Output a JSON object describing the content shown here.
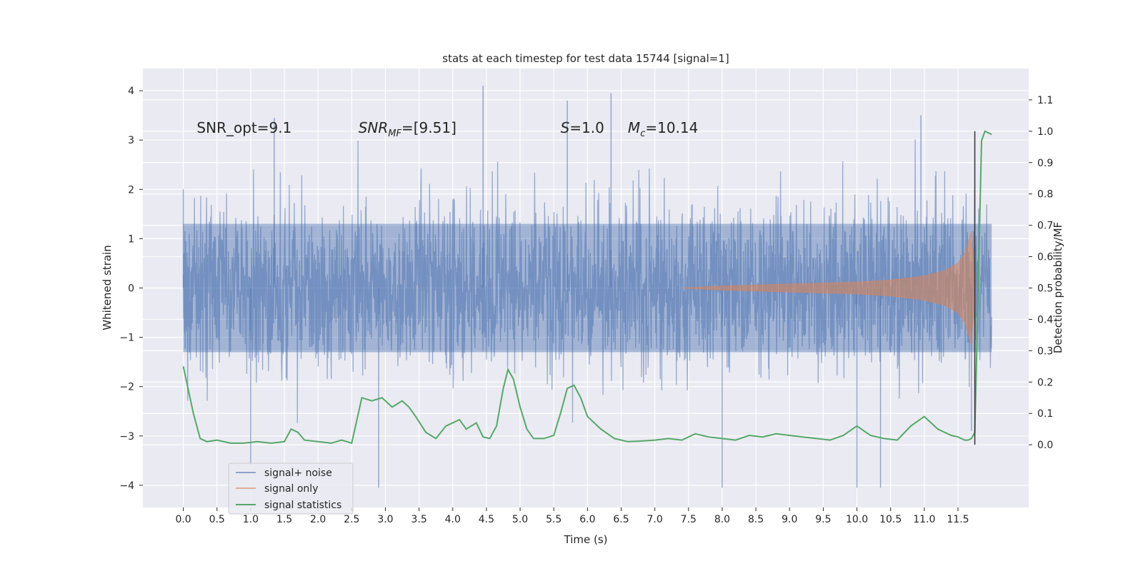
{
  "chart_data": {
    "type": "line",
    "title": "stats at each timestep for test data 15744 [signal=1]",
    "xlabel": "Time (s)",
    "ylabel": "Whitened strain",
    "y2label": "Detection probability/MF",
    "xlim": [
      -0.6,
      12.55
    ],
    "ylim": [
      -4.45,
      4.45
    ],
    "y2lim": [
      -0.2,
      1.2
    ],
    "xticks": [
      0.0,
      0.5,
      1.0,
      1.5,
      2.0,
      2.5,
      3.0,
      3.5,
      4.0,
      4.5,
      5.0,
      5.5,
      6.0,
      6.5,
      7.0,
      7.5,
      8.0,
      8.5,
      9.0,
      9.5,
      10.0,
      10.5,
      11.0,
      11.5
    ],
    "xtick_labels": [
      "0.0",
      "0.5",
      "1.0",
      "1.5",
      "2.0",
      "2.5",
      "3.0",
      "3.5",
      "4.0",
      "4.5",
      "5.0",
      "5.5",
      "6.0",
      "6.5",
      "7.0",
      "7.5",
      "8.0",
      "8.5",
      "9.0",
      "9.5",
      "10.0",
      "10.5",
      "11.0",
      "11.5"
    ],
    "yticks": [
      -4,
      -3,
      -2,
      -1,
      0,
      1,
      2,
      3,
      4
    ],
    "ytick_labels": [
      "−4",
      "−3",
      "−2",
      "−1",
      "0",
      "1",
      "2",
      "3",
      "4"
    ],
    "y2ticks": [
      0.0,
      0.1,
      0.2,
      0.3,
      0.4,
      0.5,
      0.6,
      0.7,
      0.8,
      0.9,
      1.0,
      1.1
    ],
    "y2tick_labels": [
      "0.0",
      "0.1",
      "0.2",
      "0.3",
      "0.4",
      "0.5",
      "0.6",
      "0.7",
      "0.8",
      "0.9",
      "1.0",
      "1.1"
    ],
    "grid": true,
    "legend_position": "lower-left",
    "annotations": [
      {
        "text": "SNR_opt=9.1",
        "x": 0.2,
        "y": 3.25
      },
      {
        "text": "SNR_MF=[9.51]",
        "x": 2.6,
        "y": 3.25
      },
      {
        "text": "S=1.0",
        "x": 5.6,
        "y": 3.25
      },
      {
        "text": "M_c=10.14",
        "x": 6.6,
        "y": 3.25
      }
    ],
    "vline": {
      "x": 11.75,
      "y2_range": [
        0.0,
        1.0
      ]
    },
    "series": [
      {
        "name": "signal+ noise",
        "color": "#4c72b0",
        "axis": "left",
        "t_range": [
          0.0,
          12.0
        ],
        "envelope_core": [
          -1.3,
          1.3
        ],
        "typical_extreme": [
          -2.9,
          3.2
        ],
        "notable_spikes": [
          [
            0.0,
            2.0
          ],
          [
            1.35,
            3.45
          ],
          [
            1.0,
            -3.6
          ],
          [
            2.9,
            -4.05
          ],
          [
            4.45,
            4.1
          ],
          [
            5.7,
            3.8
          ],
          [
            6.35,
            3.95
          ],
          [
            8.0,
            -4.05
          ],
          [
            10.0,
            -4.05
          ],
          [
            10.35,
            -4.05
          ],
          [
            10.95,
            3.5
          ],
          [
            11.7,
            -2.9
          ]
        ]
      },
      {
        "name": "signal only",
        "color": "#dd8452",
        "axis": "left",
        "kind": "chirp-envelope",
        "t_start": 7.4,
        "t_end": 11.75,
        "amp_start": 0.0,
        "amp_peak": 1.15,
        "t_peak": 11.7,
        "envelope": [
          [
            7.4,
            0.0
          ],
          [
            8.0,
            0.04
          ],
          [
            9.0,
            0.08
          ],
          [
            10.0,
            0.12
          ],
          [
            10.5,
            0.16
          ],
          [
            11.0,
            0.24
          ],
          [
            11.3,
            0.35
          ],
          [
            11.5,
            0.5
          ],
          [
            11.6,
            0.7
          ],
          [
            11.7,
            1.15
          ],
          [
            11.75,
            0.0
          ]
        ]
      },
      {
        "name": "signal statistics",
        "color": "#55a868",
        "axis": "right",
        "points": [
          [
            0.0,
            0.25
          ],
          [
            0.15,
            0.1
          ],
          [
            0.25,
            0.02
          ],
          [
            0.35,
            0.01
          ],
          [
            0.5,
            0.015
          ],
          [
            0.7,
            0.005
          ],
          [
            0.9,
            0.005
          ],
          [
            1.1,
            0.01
          ],
          [
            1.3,
            0.005
          ],
          [
            1.5,
            0.01
          ],
          [
            1.6,
            0.05
          ],
          [
            1.7,
            0.04
          ],
          [
            1.8,
            0.015
          ],
          [
            2.0,
            0.01
          ],
          [
            2.2,
            0.005
          ],
          [
            2.35,
            0.015
          ],
          [
            2.5,
            0.005
          ],
          [
            2.65,
            0.15
          ],
          [
            2.8,
            0.14
          ],
          [
            2.95,
            0.15
          ],
          [
            3.1,
            0.12
          ],
          [
            3.25,
            0.14
          ],
          [
            3.35,
            0.12
          ],
          [
            3.45,
            0.09
          ],
          [
            3.6,
            0.04
          ],
          [
            3.75,
            0.02
          ],
          [
            3.9,
            0.06
          ],
          [
            4.1,
            0.08
          ],
          [
            4.2,
            0.05
          ],
          [
            4.35,
            0.07
          ],
          [
            4.45,
            0.025
          ],
          [
            4.55,
            0.02
          ],
          [
            4.65,
            0.06
          ],
          [
            4.75,
            0.18
          ],
          [
            4.82,
            0.24
          ],
          [
            4.9,
            0.21
          ],
          [
            5.0,
            0.12
          ],
          [
            5.1,
            0.05
          ],
          [
            5.2,
            0.02
          ],
          [
            5.35,
            0.02
          ],
          [
            5.5,
            0.03
          ],
          [
            5.6,
            0.1
          ],
          [
            5.7,
            0.18
          ],
          [
            5.8,
            0.19
          ],
          [
            5.9,
            0.15
          ],
          [
            6.0,
            0.09
          ],
          [
            6.2,
            0.05
          ],
          [
            6.4,
            0.02
          ],
          [
            6.6,
            0.01
          ],
          [
            6.8,
            0.012
          ],
          [
            7.0,
            0.015
          ],
          [
            7.2,
            0.02
          ],
          [
            7.4,
            0.015
          ],
          [
            7.6,
            0.035
          ],
          [
            7.8,
            0.025
          ],
          [
            8.0,
            0.02
          ],
          [
            8.2,
            0.015
          ],
          [
            8.4,
            0.03
          ],
          [
            8.6,
            0.025
          ],
          [
            8.8,
            0.035
          ],
          [
            9.0,
            0.03
          ],
          [
            9.2,
            0.025
          ],
          [
            9.4,
            0.02
          ],
          [
            9.6,
            0.015
          ],
          [
            9.8,
            0.03
          ],
          [
            10.0,
            0.06
          ],
          [
            10.2,
            0.03
          ],
          [
            10.4,
            0.02
          ],
          [
            10.6,
            0.015
          ],
          [
            10.8,
            0.06
          ],
          [
            11.0,
            0.09
          ],
          [
            11.1,
            0.07
          ],
          [
            11.2,
            0.05
          ],
          [
            11.3,
            0.04
          ],
          [
            11.4,
            0.03
          ],
          [
            11.5,
            0.025
          ],
          [
            11.55,
            0.02
          ],
          [
            11.6,
            0.015
          ],
          [
            11.65,
            0.015
          ],
          [
            11.7,
            0.02
          ],
          [
            11.75,
            0.04
          ],
          [
            11.8,
            0.5
          ],
          [
            11.85,
            0.97
          ],
          [
            11.9,
            1.0
          ],
          [
            12.0,
            0.99
          ]
        ]
      }
    ]
  }
}
